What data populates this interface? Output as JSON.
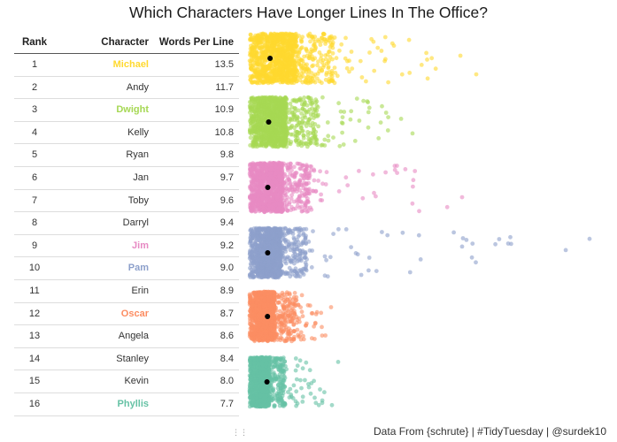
{
  "title": "Which Characters Have Longer Lines In The Office?",
  "footer": "Data From {schrute} | #TidyTuesday | @surdek10",
  "table": {
    "headers": {
      "rank": "Rank",
      "character": "Character",
      "words": "Words Per Line"
    },
    "rows": [
      {
        "rank": "1",
        "character": "Michael",
        "words": "13.5",
        "color": "#FFD92F"
      },
      {
        "rank": "2",
        "character": "Andy",
        "words": "11.7",
        "color": null
      },
      {
        "rank": "3",
        "character": "Dwight",
        "words": "10.9",
        "color": "#A6D854"
      },
      {
        "rank": "4",
        "character": "Kelly",
        "words": "10.8",
        "color": null
      },
      {
        "rank": "5",
        "character": "Ryan",
        "words": "9.8",
        "color": null
      },
      {
        "rank": "6",
        "character": "Jan",
        "words": "9.7",
        "color": null
      },
      {
        "rank": "7",
        "character": "Toby",
        "words": "9.6",
        "color": null
      },
      {
        "rank": "8",
        "character": "Darryl",
        "words": "9.4",
        "color": null
      },
      {
        "rank": "9",
        "character": "Jim",
        "words": "9.2",
        "color": "#E78AC3"
      },
      {
        "rank": "10",
        "character": "Pam",
        "words": "9.0",
        "color": "#8DA0CB"
      },
      {
        "rank": "11",
        "character": "Erin",
        "words": "8.9",
        "color": null
      },
      {
        "rank": "12",
        "character": "Oscar",
        "words": "8.7",
        "color": "#FC8D62"
      },
      {
        "rank": "13",
        "character": "Angela",
        "words": "8.6",
        "color": null
      },
      {
        "rank": "14",
        "character": "Stanley",
        "words": "8.4",
        "color": null
      },
      {
        "rank": "15",
        "character": "Kevin",
        "words": "8.0",
        "color": null
      },
      {
        "rank": "16",
        "character": "Phyllis",
        "words": "7.7",
        "color": "#66C2A5"
      }
    ]
  },
  "chart_data": {
    "type": "scatter",
    "description": "jittered strip plot of words per line for each highlighted character; black dot marks the mean",
    "xaxis_shown": false,
    "series": [
      {
        "character": "Michael",
        "color": "#FFD92F",
        "mean": 13.5,
        "dense_max": 120,
        "tail_max": 320
      },
      {
        "character": "Dwight",
        "color": "#A6D854",
        "mean": 10.9,
        "dense_max": 95,
        "tail_max": 230
      },
      {
        "character": "Jim",
        "color": "#E78AC3",
        "mean": 9.2,
        "dense_max": 85,
        "tail_max": 300
      },
      {
        "character": "Pam",
        "color": "#8DA0CB",
        "mean": 9.0,
        "dense_max": 80,
        "tail_max": 480
      },
      {
        "character": "Oscar",
        "color": "#FC8D62",
        "mean": 8.7,
        "dense_max": 65,
        "tail_max": 115
      },
      {
        "character": "Phyllis",
        "color": "#66C2A5",
        "mean": 7.7,
        "dense_max": 50,
        "tail_max": 125
      }
    ]
  }
}
